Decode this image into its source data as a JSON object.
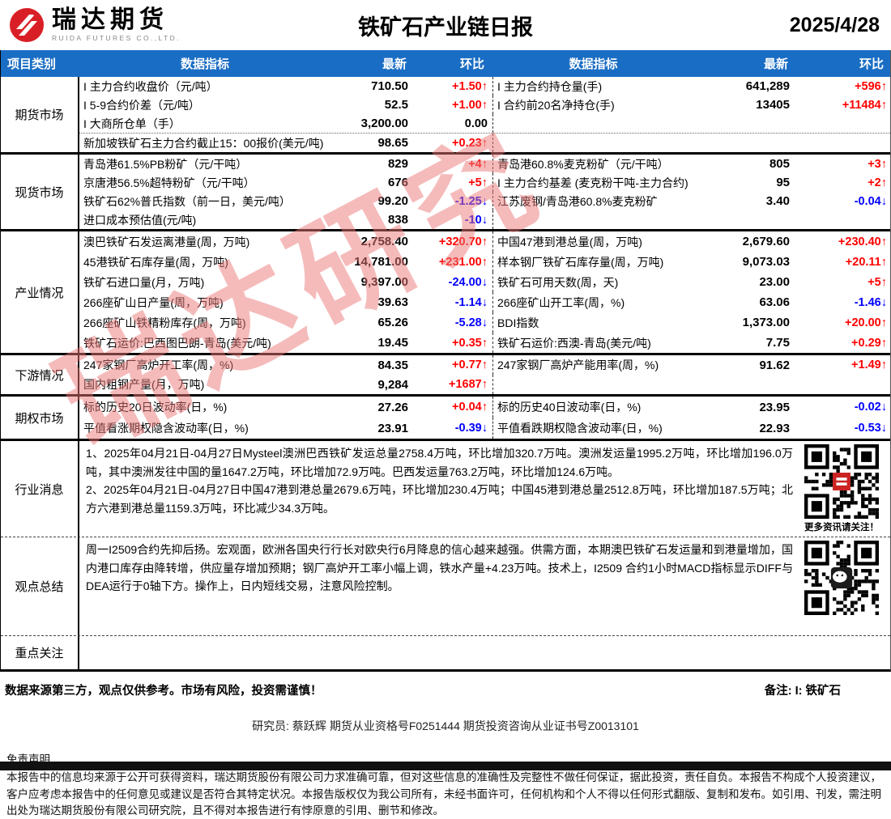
{
  "header": {
    "brand": "瑞达期货",
    "brand_sub": "RUIDA FUTURES CO.,LTD.",
    "title": "铁矿石产业链日报",
    "date": "2025/4/28"
  },
  "colors": {
    "header_bg": "#1a6dc4",
    "up": "#ff0000",
    "down": "#0000ff",
    "watermark_pink": "#ec7878"
  },
  "watermark": "瑞达研究",
  "table": {
    "columns": [
      "项目类别",
      "数据指标",
      "最新",
      "环比",
      "数据指标",
      "最新",
      "环比"
    ],
    "sections": [
      {
        "label": "期货市场",
        "type": "data",
        "rows": [
          {
            "l": {
              "ind": "I 主力合约收盘价（元/吨）",
              "val": "710.50",
              "chg": "+1.50",
              "dir": "up"
            },
            "r": {
              "ind": "I 主力合约持仓量(手)",
              "val": "641,289",
              "chg": "+596",
              "dir": "up"
            }
          },
          {
            "l": {
              "ind": "I 5-9合约价差（元/吨）",
              "val": "52.5",
              "chg": "+1.00",
              "dir": "up"
            },
            "r": {
              "ind": "I 合约前20名净持仓(手)",
              "val": "13405",
              "chg": "+11484",
              "dir": "up"
            }
          },
          {
            "l": {
              "ind": "I 大商所仓单（手）",
              "val": "3,200.00",
              "chg": "0.00",
              "dir": "flat"
            },
            "r": {
              "ind": "",
              "val": "",
              "chg": "",
              "dir": ""
            }
          },
          {
            "sep": true,
            "l": {
              "ind": "新加坡铁矿石主力合约截止15：00报价(美元/吨)",
              "val": "98.65",
              "chg": "+0.23",
              "dir": "up"
            },
            "r": {
              "ind": "",
              "val": "",
              "chg": "",
              "dir": ""
            }
          }
        ]
      },
      {
        "label": "现货市场",
        "type": "data",
        "rows": [
          {
            "l": {
              "ind": "青岛港61.5%PB粉矿（元/干吨）",
              "val": "829",
              "chg": "+4",
              "dir": "up"
            },
            "r": {
              "ind": "青岛港60.8%麦克粉矿（元/干吨）",
              "val": "805",
              "chg": "+3",
              "dir": "up"
            }
          },
          {
            "l": {
              "ind": "京唐港56.5%超特粉矿（元/干吨）",
              "val": "676",
              "chg": "+5",
              "dir": "up"
            },
            "r": {
              "ind": "I 主力合约基差 (麦克粉干吨-主力合约)",
              "val": "95",
              "chg": "+2",
              "dir": "up"
            }
          },
          {
            "l": {
              "ind": "铁矿石62%普氏指数（前一日，美元/吨）",
              "val": "99.20",
              "chg": "-1.25",
              "dir": "down"
            },
            "r": {
              "ind": "江苏废钢/青岛港60.8%麦克粉矿",
              "val": "3.40",
              "chg": "-0.04",
              "dir": "down"
            }
          },
          {
            "l": {
              "ind": "进口成本预估值(元/吨)",
              "val": "838",
              "chg": "-10",
              "dir": "down"
            },
            "r": {
              "ind": "",
              "val": "",
              "chg": "",
              "dir": ""
            }
          }
        ]
      },
      {
        "label": "产业情况",
        "type": "data",
        "rows": [
          {
            "l": {
              "ind": "澳巴铁矿石发运离港量(周，万吨)",
              "val": "2,758.40",
              "chg": "+320.70",
              "dir": "up"
            },
            "r": {
              "ind": "中国47港到港总量(周，万吨)",
              "val": "2,679.60",
              "chg": "+230.40",
              "dir": "up"
            }
          },
          {
            "l": {
              "ind": "45港铁矿石库存量(周，万吨)",
              "val": "14,781.00",
              "chg": "+231.00",
              "dir": "up"
            },
            "r": {
              "ind": "样本钢厂铁矿石库存量(周，万吨)",
              "val": "9,073.03",
              "chg": "+20.11",
              "dir": "up"
            }
          },
          {
            "l": {
              "ind": "铁矿石进口量(月，万吨)",
              "val": "9,397.00",
              "chg": "-24.00",
              "dir": "down"
            },
            "r": {
              "ind": "铁矿石可用天数(周，天)",
              "val": "23.00",
              "chg": "+5",
              "dir": "up"
            }
          },
          {
            "l": {
              "ind": "266座矿山日产量(周，万吨)",
              "val": "39.63",
              "chg": "-1.14",
              "dir": "down"
            },
            "r": {
              "ind": "266座矿山开工率(周，%)",
              "val": "63.06",
              "chg": "-1.46",
              "dir": "down"
            }
          },
          {
            "l": {
              "ind": "266座矿山铁精粉库存(周，万吨)",
              "val": "65.26",
              "chg": "-5.28",
              "dir": "down"
            },
            "r": {
              "ind": "BDI指数",
              "val": "1,373.00",
              "chg": "+20.00",
              "dir": "up"
            }
          },
          {
            "l": {
              "ind": "铁矿石运价:巴西图巴朗-青岛(美元/吨)",
              "val": "19.45",
              "chg": "+0.35",
              "dir": "up"
            },
            "r": {
              "ind": "铁矿石运价:西澳-青岛(美元/吨)",
              "val": "7.75",
              "chg": "+0.29",
              "dir": "up"
            }
          }
        ]
      },
      {
        "label": "下游情况",
        "type": "data",
        "rows": [
          {
            "l": {
              "ind": "247家钢厂高炉开工率(周，%)",
              "val": "84.35",
              "chg": "+0.77",
              "dir": "up"
            },
            "r": {
              "ind": "247家钢厂高炉产能用率(周，%)",
              "val": "91.62",
              "chg": "+1.49",
              "dir": "up"
            }
          },
          {
            "l": {
              "ind": "国内粗钢产量(月，万吨)",
              "val": "9,284",
              "chg": "+1687",
              "dir": "up"
            },
            "r": {
              "ind": "",
              "val": "",
              "chg": "",
              "dir": ""
            }
          }
        ]
      },
      {
        "label": "期权市场",
        "type": "data",
        "rows": [
          {
            "l": {
              "ind": "标的历史20日波动率(日，%)",
              "val": "27.26",
              "chg": "+0.04",
              "dir": "up"
            },
            "r": {
              "ind": "标的历史40日波动率(日，%)",
              "val": "23.95",
              "chg": "-0.02",
              "dir": "down"
            }
          },
          {
            "l": {
              "ind": "平值看涨期权隐含波动率(日，%)",
              "val": "23.91",
              "chg": "-0.39",
              "dir": "down"
            },
            "r": {
              "ind": "平值看跌期权隐含波动率(日，%)",
              "val": "22.93",
              "chg": "-0.53",
              "dir": "down"
            }
          }
        ]
      },
      {
        "label": "行业消息",
        "type": "text",
        "border": "solid",
        "qr": true,
        "qr_caption": "更多资讯请关注！",
        "text": [
          "1、2025年04月21日-04月27日Mysteel澳洲巴西铁矿发运总量2758.4万吨，环比增加320.7万吨。澳洲发运量1995.2万吨，环比增加196.0万吨，其中澳洲发往中国的量1647.2万吨，环比增加72.9万吨。巴西发运量763.2万吨，环比增加124.6万吨。",
          "2、2025年04月21日-04月27日中国47港到港总量2679.6万吨，环比增加230.4万吨；中国45港到港总量2512.8万吨，环比增加187.5万吨；北方六港到港总量1159.3万吨，环比减少34.3万吨。"
        ]
      },
      {
        "label": "观点总结",
        "type": "text",
        "border": "dashed",
        "qr": true,
        "qr_caption": "",
        "text": [
          "周一I2509合约先抑后扬。宏观面，欧洲各国央行行长对欧央行6月降息的信心越来越强。供需方面，本期澳巴铁矿石发运量和到港量增加，国内港口库存由降转增，供应量存增加预期；钢厂高炉开工率小幅上调，铁水产量+4.23万吨。技术上，I2509 合约1小时MACD指标显示DIFF与DEA运行于0轴下方。操作上，日内短线交易，注意风险控制。"
        ]
      },
      {
        "label": "重点关注",
        "type": "text",
        "border": "dashed",
        "qr": false,
        "qr_caption": "",
        "text": []
      }
    ]
  },
  "footer": {
    "source_note": "数据来源第三方，观点仅供参考。市场有风险，投资需谨慎！",
    "remark": "备注: I: 铁矿石",
    "researcher_line": "研究员: 蔡跃辉    期货从业资格号F0251444    期货投资咨询从业证书号Z0013101",
    "disclaimer_title": "免责声明",
    "disclaimer_text": "本报告中的信息均来源于公开可获得资料，瑞达期货股份有限公司力求准确可靠，但对这些信息的准确性及完整性不做任何保证，据此投资，责任自负。本报告不构成个人投资建议，客户应考虑本报告中的任何意见或建议是否符合其特定状况。本报告版权仅为我公司所有，未经书面许可，任何机构和个人不得以任何形式翻版、复制和发布。如引用、刊发，需注明出处为瑞达期货股份有限公司研究院，且不得对本报告进行有悖原意的引用、删节和修改。"
  }
}
